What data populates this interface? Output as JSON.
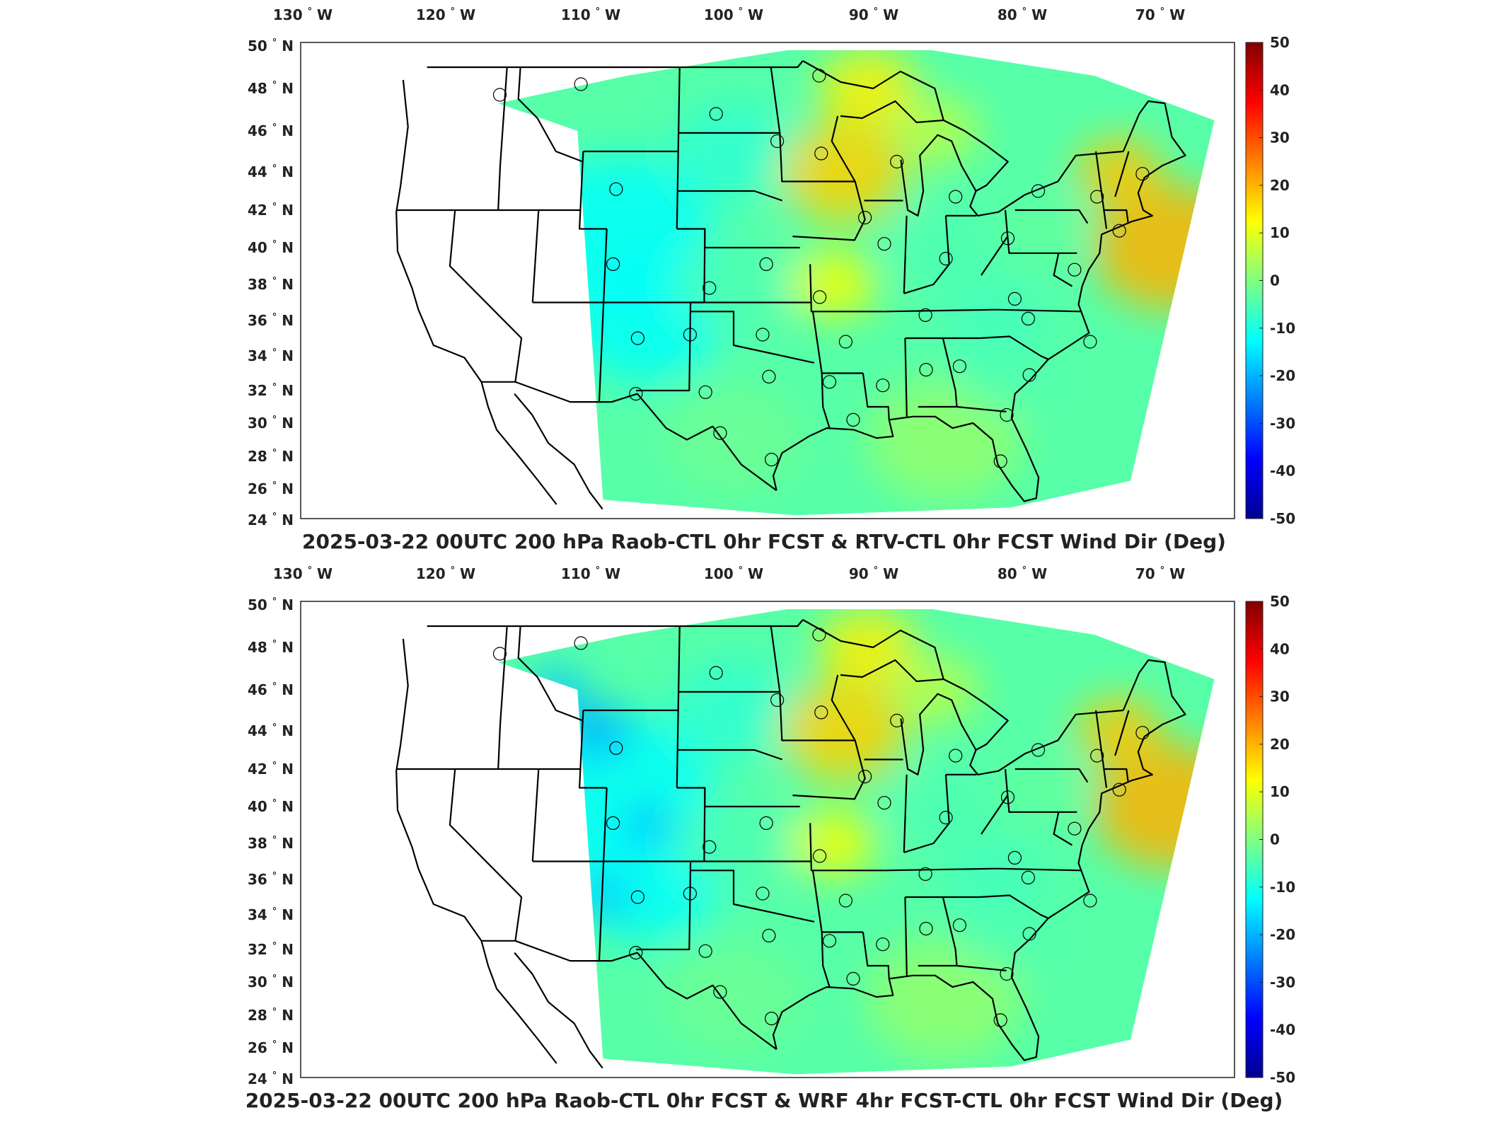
{
  "panels": [
    {
      "title": "2025-03-22 00UTC 200 hPa Raob-CTL 0hr FCST & RTV-CTL 0hr FCST Wind Dir (Deg)",
      "variant": "rtv"
    },
    {
      "title": "2025-03-22 00UTC 200 hPa Raob-CTL 0hr FCST & WRF 4hr FCST-CTL 0hr FCST Wind Dir (Deg)",
      "variant": "wrf"
    }
  ],
  "lon_ticks": [
    {
      "value": 130,
      "label": "130",
      "hemi": "W"
    },
    {
      "value": 120,
      "label": "120",
      "hemi": "W"
    },
    {
      "value": 110,
      "label": "110",
      "hemi": "W"
    },
    {
      "value": 100,
      "label": "100",
      "hemi": "W"
    },
    {
      "value": 90,
      "label": "90",
      "hemi": "W"
    },
    {
      "value": 80,
      "label": "80",
      "hemi": "W"
    },
    {
      "value": 70,
      "label": "70",
      "hemi": "W"
    }
  ],
  "lat_ticks": [
    {
      "value": 50,
      "label": "50",
      "hemi": "N"
    },
    {
      "value": 48,
      "label": "48",
      "hemi": "N"
    },
    {
      "value": 46,
      "label": "46",
      "hemi": "N"
    },
    {
      "value": 44,
      "label": "44",
      "hemi": "N"
    },
    {
      "value": 42,
      "label": "42",
      "hemi": "N"
    },
    {
      "value": 40,
      "label": "40",
      "hemi": "N"
    },
    {
      "value": 38,
      "label": "38",
      "hemi": "N"
    },
    {
      "value": 36,
      "label": "36",
      "hemi": "N"
    },
    {
      "value": 34,
      "label": "34",
      "hemi": "N"
    },
    {
      "value": 32,
      "label": "32",
      "hemi": "N"
    },
    {
      "value": 30,
      "label": "30",
      "hemi": "N"
    },
    {
      "value": 28,
      "label": "28",
      "hemi": "N"
    },
    {
      "value": 26,
      "label": "26",
      "hemi": "N"
    },
    {
      "value": 24,
      "label": "24",
      "hemi": "N"
    }
  ],
  "degree_symbol": "°",
  "colorbar": {
    "min": -50,
    "max": 50,
    "ticks": [
      "50",
      "40",
      "30",
      "20",
      "10",
      "0",
      "-10",
      "-20",
      "-30",
      "-40",
      "-50"
    ],
    "colors": [
      "#00008f",
      "#0000ff",
      "#0080ff",
      "#00ffff",
      "#80ff80",
      "#ffff00",
      "#ff8000",
      "#ff0000",
      "#800000"
    ]
  },
  "raob_stations": [
    {
      "lon": -117.4,
      "lat": 47.7
    },
    {
      "lon": -111.4,
      "lat": 48.2
    },
    {
      "lon": -101.3,
      "lat": 46.8
    },
    {
      "lon": -96.8,
      "lat": 45.5
    },
    {
      "lon": -93.6,
      "lat": 48.6
    },
    {
      "lon": -93.6,
      "lat": 44.9
    },
    {
      "lon": -88.1,
      "lat": 44.5
    },
    {
      "lon": -84.0,
      "lat": 42.7
    },
    {
      "lon": -78.0,
      "lat": 43.0
    },
    {
      "lon": -73.8,
      "lat": 42.7
    },
    {
      "lon": -70.3,
      "lat": 43.9
    },
    {
      "lon": -108.5,
      "lat": 43.1
    },
    {
      "lon": -90.6,
      "lat": 41.6
    },
    {
      "lon": -89.3,
      "lat": 40.2
    },
    {
      "lon": -85.0,
      "lat": 39.4
    },
    {
      "lon": -80.5,
      "lat": 40.5
    },
    {
      "lon": -76.0,
      "lat": 38.8
    },
    {
      "lon": -72.5,
      "lat": 40.9
    },
    {
      "lon": -108.5,
      "lat": 39.1
    },
    {
      "lon": -101.7,
      "lat": 37.8
    },
    {
      "lon": -97.7,
      "lat": 39.1
    },
    {
      "lon": -94.0,
      "lat": 37.3
    },
    {
      "lon": -86.7,
      "lat": 36.3
    },
    {
      "lon": -80.4,
      "lat": 37.2
    },
    {
      "lon": -79.6,
      "lat": 36.1
    },
    {
      "lon": -75.5,
      "lat": 34.8
    },
    {
      "lon": -106.6,
      "lat": 35.0
    },
    {
      "lon": -103.0,
      "lat": 35.2
    },
    {
      "lon": -98.0,
      "lat": 35.2
    },
    {
      "lon": -92.3,
      "lat": 34.8
    },
    {
      "lon": -86.9,
      "lat": 33.2
    },
    {
      "lon": -84.6,
      "lat": 33.4
    },
    {
      "lon": -79.9,
      "lat": 32.9
    },
    {
      "lon": -106.6,
      "lat": 31.8
    },
    {
      "lon": -101.9,
      "lat": 31.9
    },
    {
      "lon": -97.6,
      "lat": 32.8
    },
    {
      "lon": -93.5,
      "lat": 32.5
    },
    {
      "lon": -89.9,
      "lat": 32.3
    },
    {
      "lon": -92.0,
      "lat": 30.2
    },
    {
      "lon": -81.7,
      "lat": 30.5
    },
    {
      "lon": -100.9,
      "lat": 29.4
    },
    {
      "lon": -97.5,
      "lat": 27.8
    },
    {
      "lon": -82.4,
      "lat": 27.7
    }
  ]
}
